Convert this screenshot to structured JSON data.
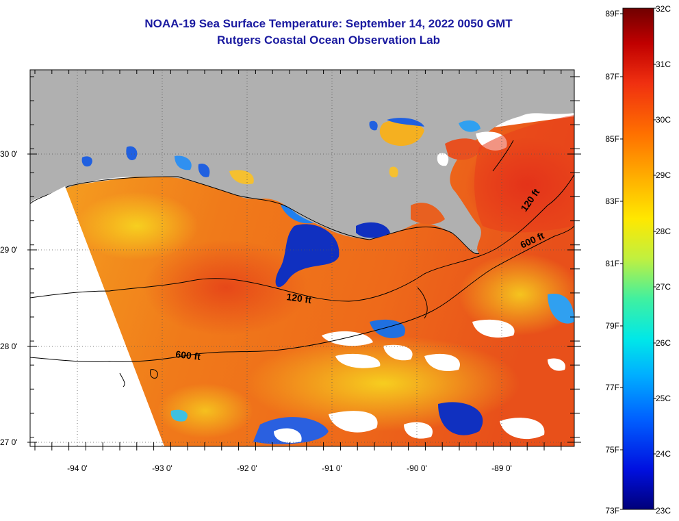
{
  "header": {
    "title_line1": "NOAA-19 Sea Surface Temperature:  September 14, 2022 0050 GMT",
    "title_line2": "Rutgers Coastal Ocean Observation Lab"
  },
  "map": {
    "longitude_labels": [
      "-94 0'",
      "-93 0'",
      "-92 0'",
      "-91 0'",
      "-90 0'",
      "-89 0'"
    ],
    "latitude_labels": [
      "30 0'",
      "29 0'",
      "28 0'",
      "27 0'"
    ],
    "contour_labels": [
      "120 ft",
      "600 ft",
      "120 ft",
      "600 ft"
    ],
    "colors": {
      "land": "#b0b0b0",
      "no_data": "#ffffff",
      "warm_sea": "#f07a1a",
      "hot_sea": "#e83c1c",
      "cool_sea": "#1030c0"
    }
  },
  "colorbar": {
    "fahrenheit_labels": [
      "89F",
      "87F",
      "85F",
      "83F",
      "81F",
      "79F",
      "77F",
      "75F",
      "73F"
    ],
    "celsius_labels": [
      "32C",
      "31C",
      "30C",
      "29C",
      "28C",
      "27C",
      "26C",
      "25C",
      "24C",
      "23C"
    ],
    "stops": [
      "#00007a",
      "#0010e0",
      "#0060ff",
      "#00b0ff",
      "#00e8e8",
      "#40f0a0",
      "#c0f040",
      "#ffe800",
      "#ffb000",
      "#ff7000",
      "#f03010",
      "#c00000",
      "#700000"
    ]
  }
}
